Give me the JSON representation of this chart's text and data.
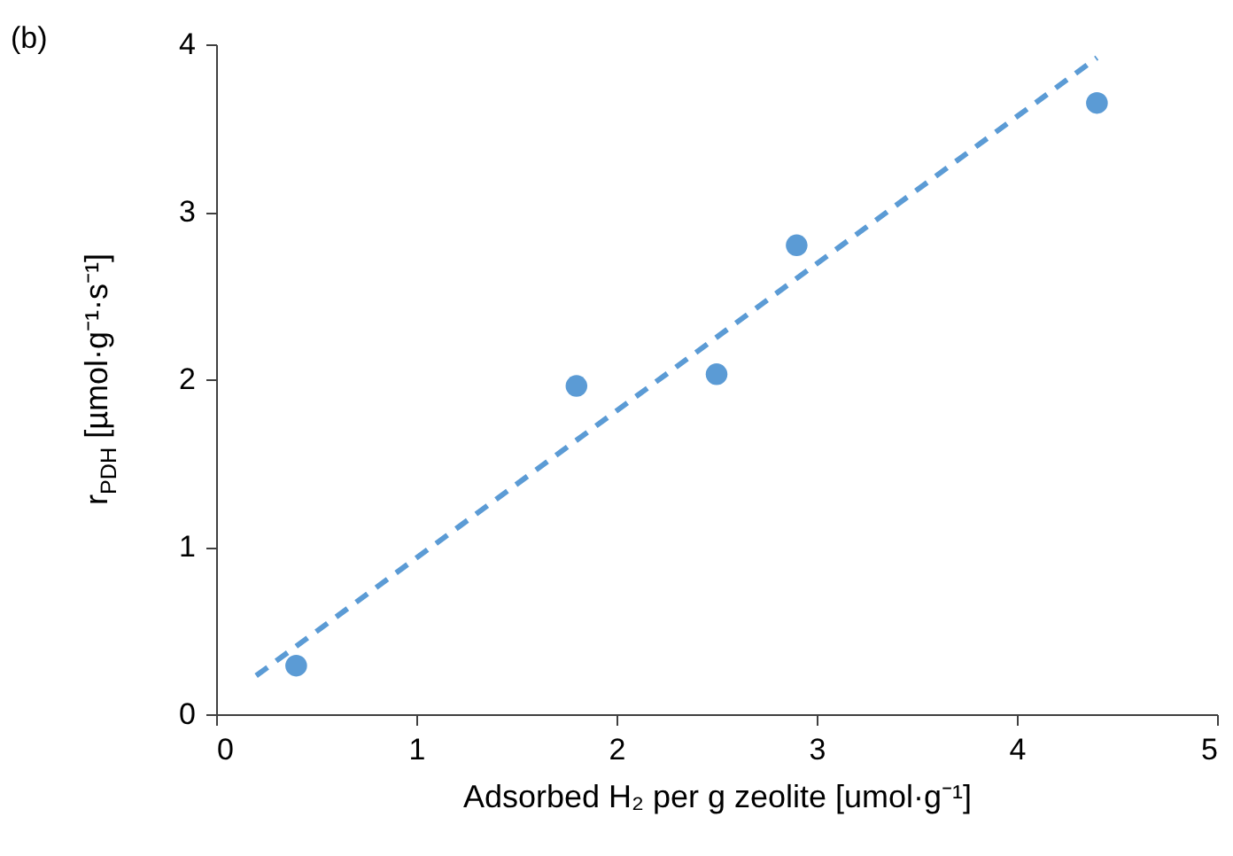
{
  "chart_data": {
    "type": "scatter",
    "xlabel": "Adsorbed H₂ per g zeolite [umol·g⁻¹]",
    "ylabel": "r$_{PDH}$ [µmol·g⁻¹·s⁻¹]",
    "annotations": [
      "(b)"
    ],
    "xlim": [
      0,
      5
    ],
    "xticks": [
      0,
      1,
      2,
      3,
      4,
      5
    ],
    "ylim": [
      0,
      4
    ],
    "yticks": [
      0,
      1,
      2,
      3,
      4
    ],
    "grid": false,
    "series": [
      {
        "color": "#5b9bd5",
        "marker": "circle",
        "x": [
          0.4,
          1.8,
          2.5,
          2.9,
          4.4
        ],
        "values": [
          0.29,
          1.96,
          2.03,
          2.8,
          3.65
        ]
      },
      {
        "type": "line",
        "color": "#5b9bd5",
        "line_style": "dashed",
        "x": [
          0.2,
          4.4
        ],
        "values": [
          0.23,
          3.92
        ]
      }
    ]
  }
}
